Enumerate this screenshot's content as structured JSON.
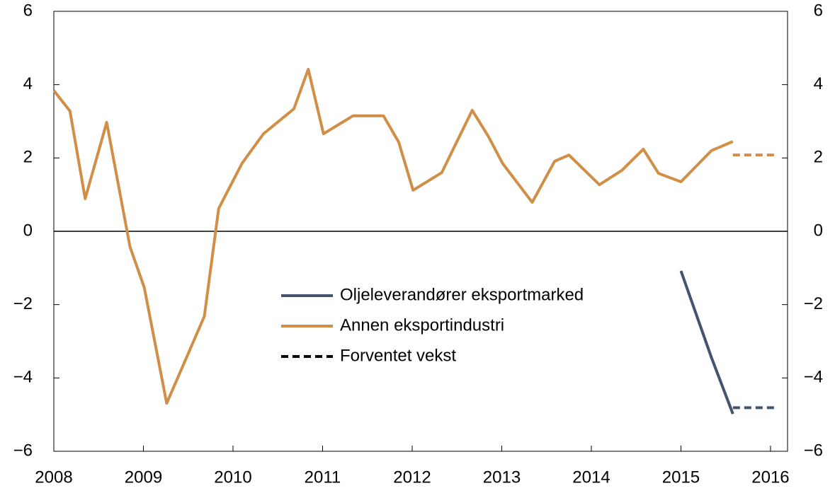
{
  "chart_data": {
    "type": "line",
    "series": [
      {
        "name": "Oljeleverandører eksportmarked",
        "color": "#44546e",
        "x": [
          2015.0,
          2015.34,
          2015.58
        ],
        "values": [
          -1.08,
          -3.44,
          -4.98
        ]
      },
      {
        "name": "Annen eksportindustri",
        "color": "#d18e47",
        "x": [
          2008.0,
          2008.18,
          2008.35,
          2008.59,
          2008.85,
          2009.01,
          2009.26,
          2009.68,
          2009.84,
          2010.1,
          2010.34,
          2010.68,
          2010.84,
          2011.01,
          2011.34,
          2011.68,
          2011.85,
          2012.01,
          2012.33,
          2012.67,
          2012.85,
          2013.01,
          2013.34,
          2013.59,
          2013.75,
          2014.09,
          2014.34,
          2014.58,
          2014.75,
          2015.0,
          2015.34,
          2015.58
        ],
        "values": [
          3.84,
          3.28,
          0.89,
          2.97,
          -0.42,
          -1.54,
          -4.69,
          -2.32,
          0.62,
          1.85,
          2.66,
          3.34,
          4.42,
          2.66,
          3.15,
          3.15,
          2.43,
          1.12,
          1.6,
          3.3,
          2.59,
          1.85,
          0.79,
          1.91,
          2.08,
          1.27,
          1.66,
          2.24,
          1.58,
          1.35,
          2.2,
          2.45
        ]
      }
    ],
    "forecast": {
      "name": "Forventet vekst",
      "color": "#000000",
      "series": [
        {
          "color": "#44546e",
          "x": [
            2015.58,
            2016.08
          ],
          "values": [
            -4.81,
            -4.81
          ]
        },
        {
          "color": "#d18e47",
          "x": [
            2015.58,
            2016.08
          ],
          "values": [
            2.08,
            2.08
          ]
        }
      ]
    },
    "xlim": [
      2008,
      2016.19
    ],
    "xticks": [
      2008,
      2009,
      2010,
      2011,
      2012,
      2013,
      2014,
      2015,
      2016
    ],
    "ylim": [
      -6,
      6
    ],
    "yticks": [
      {
        "value": -6,
        "label": "−6"
      },
      {
        "value": -4,
        "label": "−4"
      },
      {
        "value": -2,
        "label": "−2"
      },
      0,
      2,
      4,
      6
    ],
    "y2lim": [
      -6,
      6
    ],
    "y2ticks": [
      {
        "value": -6,
        "label": "−6"
      },
      {
        "value": -4,
        "label": "−4"
      },
      {
        "value": -2,
        "label": "−2"
      },
      0,
      2,
      4,
      6
    ]
  }
}
